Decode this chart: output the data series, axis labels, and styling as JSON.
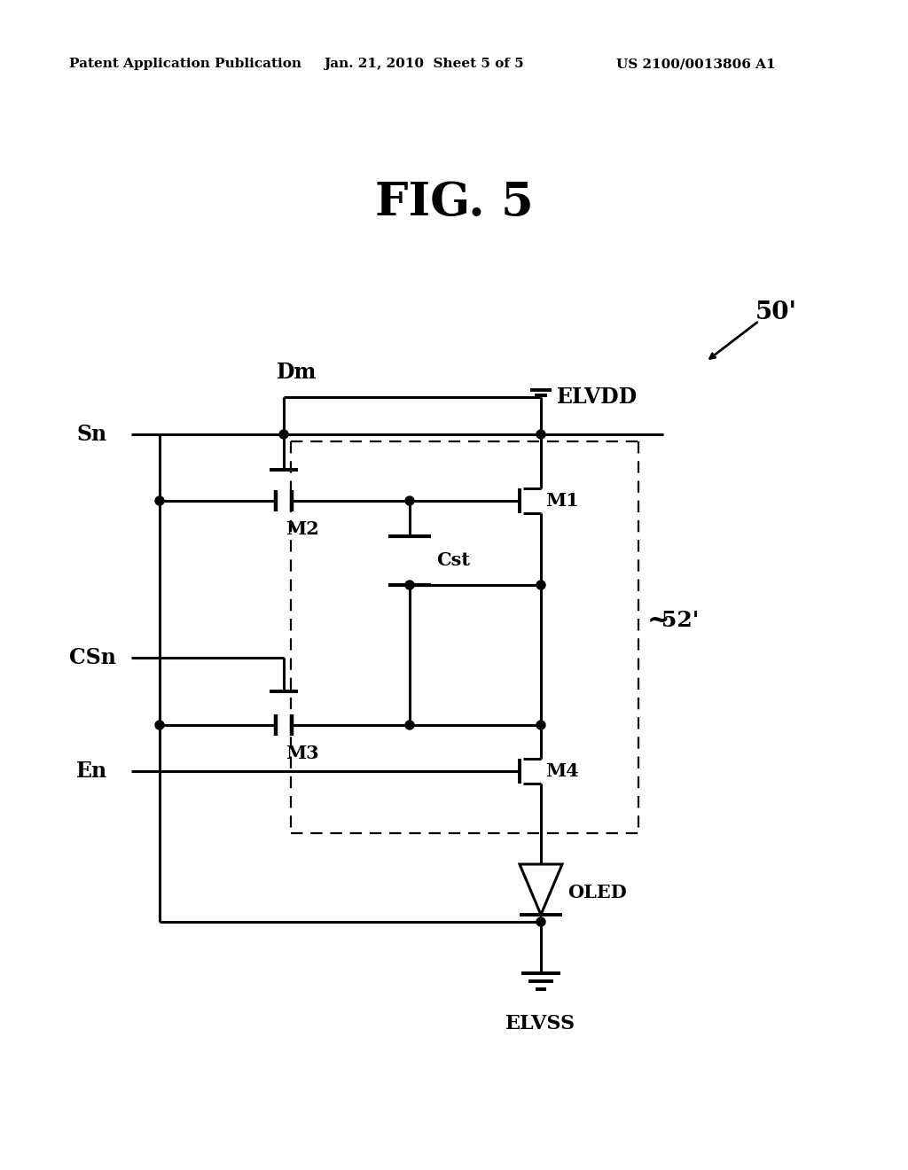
{
  "header_left": "Patent Application Publication",
  "header_mid": "Jan. 21, 2010  Sheet 5 of 5",
  "header_right": "US 2100/0013806 A1",
  "title": "FIG. 5",
  "ref_50": "50'",
  "ref_52": "52'",
  "bg_color": "#ffffff",
  "lw": 2.2
}
